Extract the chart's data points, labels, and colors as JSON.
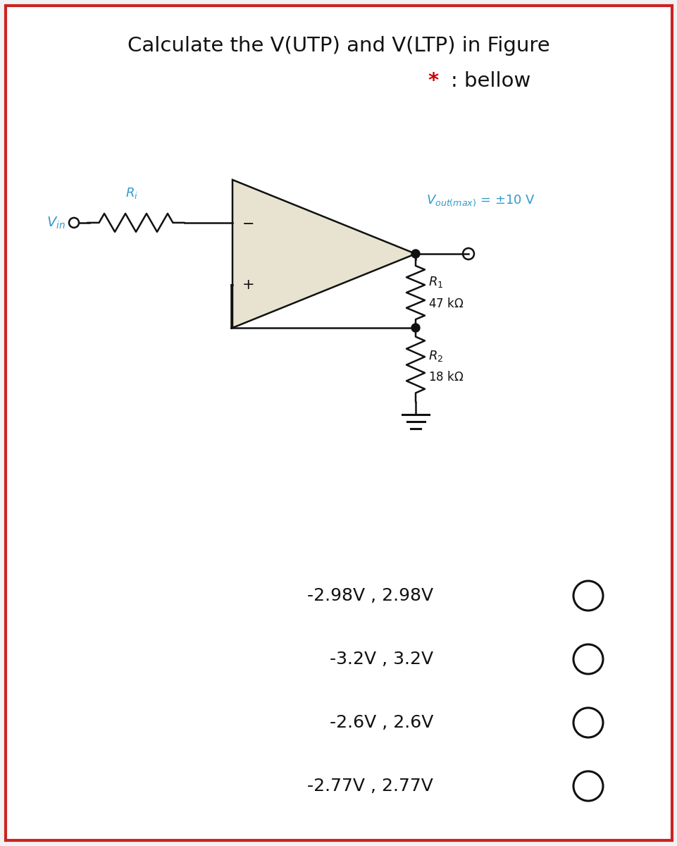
{
  "title_line1": "Calculate the V(UTP) and V(LTP) in Figure",
  "star_color": "#cc0000",
  "bg_color": "#f2f2f2",
  "panel_color": "#ffffff",
  "circuit_fill": "#e8e3d0",
  "options": [
    "-2.98V , 2.98V",
    "-3.2V , 3.2V",
    "-2.6V , 2.6V",
    "-2.77V , 2.77V"
  ],
  "cyan_color": "#3399cc",
  "dark_color": "#111111",
  "title_fontsize": 21,
  "option_fontsize": 18
}
